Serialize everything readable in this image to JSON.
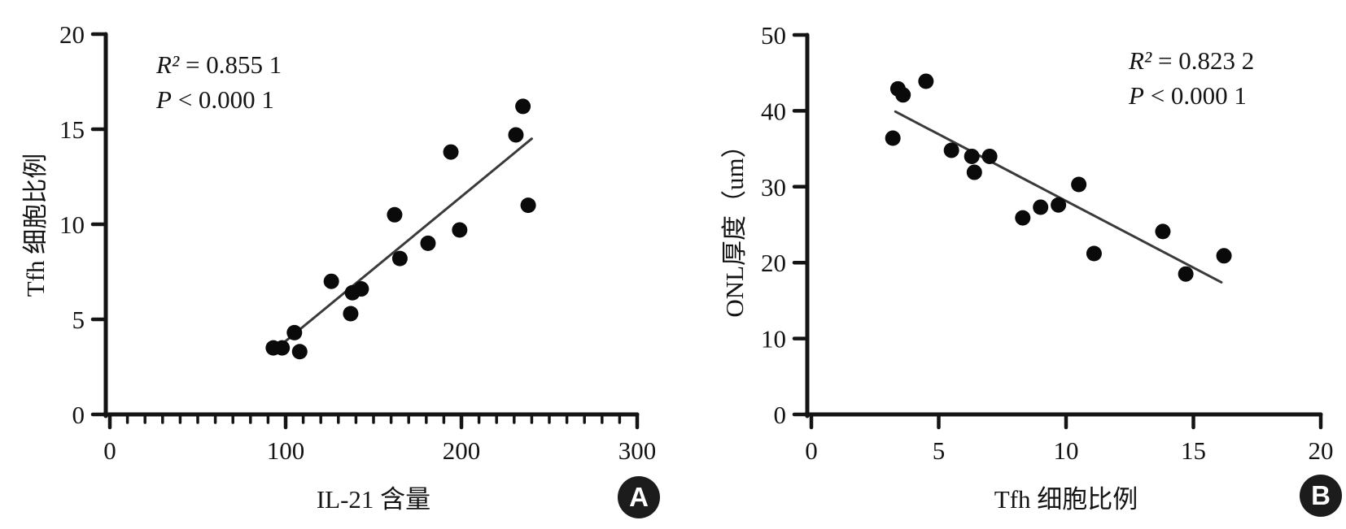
{
  "figure": {
    "background": "#ffffff",
    "ink_color": "#141414",
    "point_color": "#0a0a0a",
    "trend_color": "#3a3a3a",
    "badge_bg": "#1c1c1c",
    "badge_text_color": "#ffffff"
  },
  "chart_data": [
    {
      "id": "A",
      "type": "scatter",
      "panel_label": "A",
      "xlabel": "IL-21 含量",
      "ylabel": "Tfh 细胞比例",
      "xlim": [
        0,
        300
      ],
      "ylim": [
        0,
        20
      ],
      "x_major_ticks": [
        0,
        100,
        200,
        300
      ],
      "x_minor_step": 10,
      "y_major_ticks": [
        0,
        5,
        10,
        15,
        20
      ],
      "grid": false,
      "annotations": {
        "r2_symbol": "R²",
        "r2_value": " = 0.855 1",
        "p_symbol": "P",
        "p_value": " < 0.000 1"
      },
      "points": [
        [
          93,
          3.5
        ],
        [
          98,
          3.5
        ],
        [
          105,
          4.3
        ],
        [
          108,
          3.3
        ],
        [
          126,
          7.0
        ],
        [
          137,
          5.3
        ],
        [
          138,
          6.4
        ],
        [
          143,
          6.6
        ],
        [
          162,
          10.5
        ],
        [
          165,
          8.2
        ],
        [
          181,
          9.0
        ],
        [
          194,
          13.8
        ],
        [
          199,
          9.7
        ],
        [
          231,
          14.7
        ],
        [
          235,
          16.2
        ],
        [
          238,
          11.0
        ]
      ],
      "trendline": {
        "x1": 94,
        "y1": 3.4,
        "x2": 240,
        "y2": 14.5
      }
    },
    {
      "id": "B",
      "type": "scatter",
      "panel_label": "B",
      "xlabel": "Tfh 细胞比例",
      "ylabel": "ONL厚度（um）",
      "xlim": [
        0,
        20
      ],
      "ylim": [
        0,
        50
      ],
      "x_major_ticks": [
        0,
        5,
        10,
        15,
        20
      ],
      "x_minor_step": null,
      "y_major_ticks": [
        0,
        10,
        20,
        30,
        40,
        50
      ],
      "grid": false,
      "annotations": {
        "r2_symbol": "R²",
        "r2_value": " = 0.823 2",
        "p_symbol": "P",
        "p_value": " < 0.000 1"
      },
      "points": [
        [
          3.2,
          36.4
        ],
        [
          3.4,
          42.9
        ],
        [
          3.6,
          42.1
        ],
        [
          4.5,
          43.9
        ],
        [
          5.5,
          34.8
        ],
        [
          6.3,
          34.0
        ],
        [
          6.4,
          31.9
        ],
        [
          7.0,
          34.0
        ],
        [
          8.3,
          25.9
        ],
        [
          9.0,
          27.3
        ],
        [
          9.7,
          27.6
        ],
        [
          10.5,
          30.3
        ],
        [
          11.1,
          21.2
        ],
        [
          13.8,
          24.1
        ],
        [
          14.7,
          18.5
        ],
        [
          16.2,
          20.9
        ]
      ],
      "trendline": {
        "x1": 3.3,
        "y1": 39.9,
        "x2": 16.1,
        "y2": 17.4
      }
    }
  ]
}
